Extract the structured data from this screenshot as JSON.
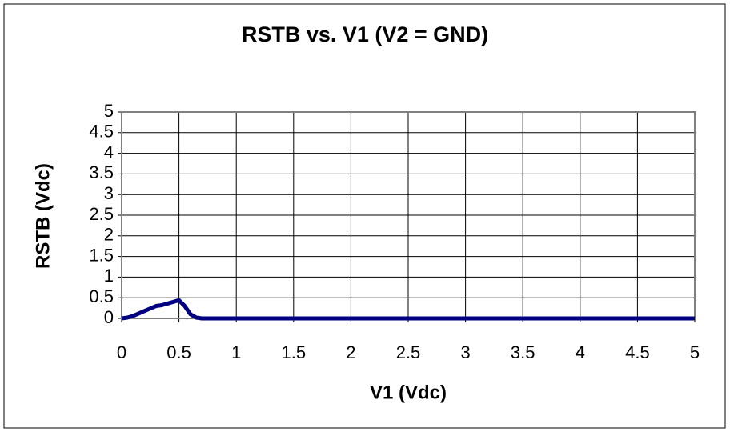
{
  "chart_data": {
    "type": "line",
    "title": "RSTB vs. V1 (V2 = GND)",
    "x_label": "V1 (Vdc)",
    "y_label": "RSTB (Vdc)",
    "x": [
      0,
      0.05,
      0.1,
      0.15,
      0.2,
      0.25,
      0.3,
      0.35,
      0.4,
      0.45,
      0.5,
      0.55,
      0.6,
      0.65,
      0.7,
      1,
      2,
      3,
      4,
      5
    ],
    "series": [
      {
        "name": "RSTB",
        "color": "#000080",
        "values": [
          0,
          0.02,
          0.06,
          0.12,
          0.18,
          0.24,
          0.3,
          0.32,
          0.36,
          0.4,
          0.44,
          0.3,
          0.1,
          0.02,
          0,
          0,
          0,
          0,
          0,
          0
        ]
      }
    ],
    "xlim": [
      0,
      5
    ],
    "ylim": [
      0,
      5
    ],
    "xticks": [
      0,
      0.5,
      1,
      1.5,
      2,
      2.5,
      3,
      3.5,
      4,
      4.5,
      5
    ],
    "yticks": [
      0,
      0.5,
      1,
      1.5,
      2,
      2.5,
      3,
      3.5,
      4,
      4.5,
      5
    ],
    "grid": true
  }
}
